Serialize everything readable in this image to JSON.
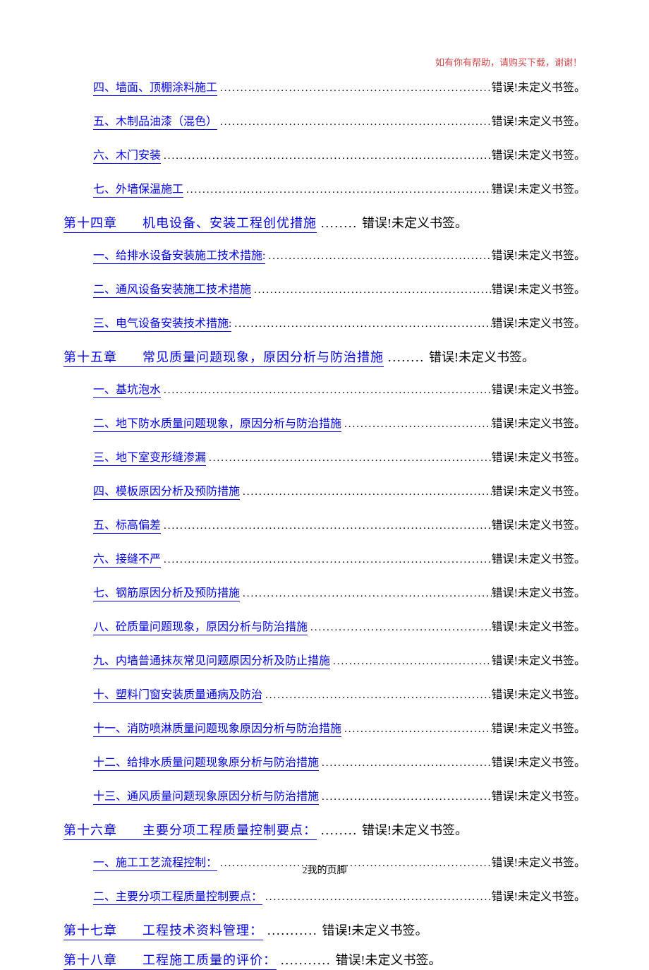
{
  "header": "如有你有帮助，请购买下载，谢谢！",
  "errorText": "错误!未定义书签。",
  "footer": "2我的页脚",
  "sections": [
    {
      "type": "sub",
      "items": [
        "四、墙面、顶棚涂料施工 ",
        "五、木制品油漆（混色） ",
        "六、木门安装 ",
        "七、外墙保温施工 "
      ]
    },
    {
      "type": "chapter",
      "prefix": "第十四章",
      "title": "机电设备、安装工程创优措施"
    },
    {
      "type": "sub",
      "items": [
        "一、给排水设备安装施工技术措施: ",
        "二、通风设备安装施工技术措施 ",
        "三、电气设备安装技术措施: "
      ]
    },
    {
      "type": "chapter",
      "prefix": "第十五章",
      "title": "常见质量问题现象，原因分析与防治措施"
    },
    {
      "type": "sub",
      "items": [
        "一、基坑泡水 ",
        "二、地下防水质量问题现象，原因分析与防治措施 ",
        "三、地下室变形缝渗漏 ",
        "四、模板原因分析及预防措施 ",
        "五、标高偏差 ",
        "六、接缝不严 ",
        "七、钢筋原因分析及预防措施 ",
        "八、砼质量问题现象，原因分析与防治措施 ",
        "九、内墙普通抹灰常见问题原因分析及防止措施 ",
        "十、塑料门窗安装质量通病及防治 ",
        "十一、消防喷淋质量问题现象原因分析与防治措施 ",
        "十二、给排水质量问题现象原分析与防治措施 ",
        "十三、通风质量问题现象原因分析与防治措施 "
      ]
    },
    {
      "type": "chapter",
      "prefix": "第十六章",
      "title": "主要分项工程质量控制要点："
    },
    {
      "type": "sub",
      "items": [
        "一、施工工艺流程控制： ",
        "二、主要分项工程质量控制要点： "
      ]
    },
    {
      "type": "chapter",
      "prefix": "第十七章",
      "title": "工程技术资料管理：",
      "extraSpace": true
    },
    {
      "type": "chapter",
      "prefix": "第十八章",
      "title": "工程施工质量的评价：",
      "extraSpace": true
    }
  ]
}
